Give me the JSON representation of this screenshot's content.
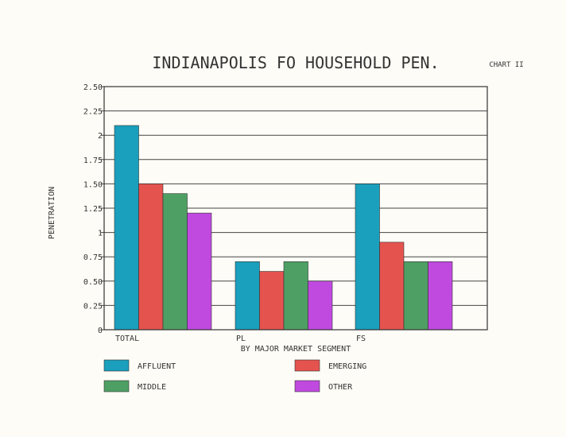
{
  "chart_data": {
    "type": "bar",
    "title": "INDIANAPOLIS FO HOUSEHOLD PEN.",
    "chart_label": "CHART II",
    "xlabel": "BY MAJOR MARKET SEGMENT",
    "ylabel": "PENETRATION",
    "categories": [
      "TOTAL",
      "PL",
      "FS"
    ],
    "ylim": [
      0,
      2.5
    ],
    "yticks": [
      "0",
      "0.25",
      "0.50",
      "0.75",
      "1",
      "1.25",
      "1.50",
      "1.75",
      "2",
      "2.25",
      "2.50"
    ],
    "grid": true,
    "legend_position": "bottom",
    "series": [
      {
        "name": "AFFLUENT",
        "color": "#1a9fbd",
        "values": [
          2.1,
          0.7,
          1.5
        ]
      },
      {
        "name": "EMERGING",
        "color": "#e5534f",
        "values": [
          1.5,
          0.6,
          0.9
        ]
      },
      {
        "name": "MIDDLE",
        "color": "#4e9f63",
        "values": [
          1.4,
          0.7,
          0.7
        ]
      },
      {
        "name": "OTHER",
        "color": "#c04ae0",
        "values": [
          1.2,
          0.5,
          0.7
        ]
      }
    ]
  }
}
